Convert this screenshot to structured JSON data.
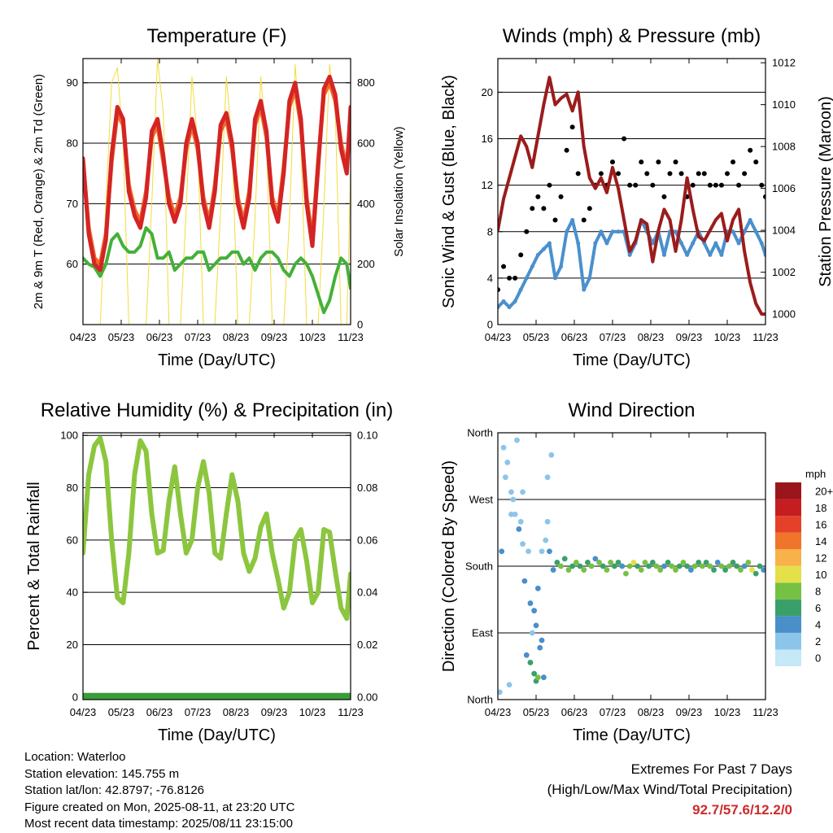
{
  "footer": {
    "location": "Location: Waterloo",
    "elevation": "Station elevation: 145.755 m",
    "latlon": "Station lat/lon: 42.8797; -76.8126",
    "created": "Figure created on Mon, 2025-08-11, at 23:20 UTC",
    "recent": "Most recent data timestamp: 2025/08/11 23:15:00",
    "extremes_title": "Extremes For Past 7 Days",
    "extremes_desc": "(High/Low/Max Wind/Total Precipitation)",
    "extremes_values": "92.7/57.6/12.2/0"
  },
  "chart_data": [
    {
      "id": "temperature",
      "type": "line",
      "title": "Temperature (F)",
      "xlabel": "Time (Day/UTC)",
      "ylabel_left": "2m & 9m T (Red, Orange) & 2m Td (Green)",
      "ylabel_right": "Solar Insolation (Yellow)",
      "x_ticks": [
        "04/23",
        "05/23",
        "06/23",
        "07/23",
        "08/23",
        "09/23",
        "10/23",
        "11/23"
      ],
      "ylim_left": [
        50,
        94
      ],
      "yticks_left": [
        60,
        70,
        80,
        90
      ],
      "ylim_right": [
        0,
        880
      ],
      "yticks_right": [
        0,
        200,
        400,
        600,
        800
      ],
      "x_days": [
        0,
        0.15,
        0.3,
        0.45,
        0.6,
        0.75,
        0.9,
        1.05,
        1.2,
        1.35,
        1.5,
        1.65,
        1.8,
        1.95,
        2.1,
        2.25,
        2.4,
        2.55,
        2.7,
        2.85,
        3.0,
        3.15,
        3.3,
        3.45,
        3.6,
        3.75,
        3.9,
        4.05,
        4.2,
        4.35,
        4.5,
        4.65,
        4.8,
        4.95,
        5.1,
        5.25,
        5.4,
        5.55,
        5.7,
        5.85,
        6.0,
        6.15,
        6.3,
        6.45,
        6.6,
        6.75,
        6.9,
        7.0
      ],
      "series": [
        {
          "name": "2m T",
          "color": "#d42424",
          "values": [
            77.5,
            65,
            60,
            59,
            64,
            78,
            86,
            84,
            72,
            68,
            66,
            71,
            82,
            84,
            78,
            70,
            67,
            70,
            80,
            84,
            80,
            70,
            66,
            72,
            83,
            85,
            80,
            70,
            66,
            71,
            84,
            87,
            82,
            70,
            67,
            75,
            87,
            90,
            84,
            70,
            63,
            76,
            89,
            91,
            88,
            79,
            75,
            86
          ]
        },
        {
          "name": "9m T",
          "color": "#f06a2a",
          "values": [
            77,
            66,
            61,
            60,
            65,
            77,
            85,
            83,
            73,
            69,
            67,
            72,
            81,
            83,
            77,
            71,
            68,
            71,
            79,
            83,
            79,
            71,
            67,
            73,
            82,
            84,
            79,
            71,
            67,
            72,
            83,
            86,
            81,
            71,
            68,
            76,
            86,
            89,
            83,
            71,
            64,
            77,
            88,
            90,
            87,
            80,
            76,
            85
          ]
        },
        {
          "name": "2m Td",
          "color": "#45b03a",
          "values": [
            61,
            60,
            59.5,
            58,
            60,
            64,
            65,
            63,
            62,
            62,
            63,
            66,
            65,
            61,
            61,
            62,
            59,
            60,
            61,
            61,
            62,
            62,
            59,
            60,
            61,
            61,
            62,
            62,
            60,
            61,
            59,
            61,
            62,
            62,
            61,
            59,
            58,
            60,
            61,
            60,
            58,
            55,
            52,
            54,
            58,
            61,
            60,
            56
          ]
        },
        {
          "name": "Solar Insolation",
          "color": "#f2dc3c",
          "axis": "right",
          "values": [
            0,
            0,
            0,
            0,
            400,
            800,
            850,
            600,
            0,
            0,
            0,
            0,
            400,
            880,
            700,
            0,
            0,
            0,
            380,
            820,
            600,
            0,
            0,
            0,
            380,
            820,
            600,
            0,
            0,
            0,
            350,
            820,
            600,
            0,
            0,
            0,
            350,
            860,
            600,
            0,
            0,
            0,
            380,
            860,
            700,
            0,
            0,
            500
          ]
        }
      ]
    },
    {
      "id": "winds",
      "type": "scatter",
      "title": "Winds (mph) & Pressure (mb)",
      "xlabel": "Time (Day/UTC)",
      "ylabel_left": "Sonic Wind & Gust (Blue, Black)",
      "ylabel_right": "Station Pressure (Maroon)",
      "x_ticks": [
        "04/23",
        "05/23",
        "06/23",
        "07/23",
        "08/23",
        "09/23",
        "10/23",
        "11/23"
      ],
      "ylim_left": [
        0,
        22.9
      ],
      "yticks_left": [
        0,
        4,
        8,
        12,
        16,
        20
      ],
      "ylim_right": [
        999.5,
        1012.2
      ],
      "yticks_right": [
        1000,
        1002,
        1004,
        1006,
        1008,
        1010,
        1012
      ],
      "x_days": [
        0,
        0.15,
        0.3,
        0.45,
        0.6,
        0.75,
        0.9,
        1.05,
        1.2,
        1.35,
        1.5,
        1.65,
        1.8,
        1.95,
        2.1,
        2.25,
        2.4,
        2.55,
        2.7,
        2.85,
        3.0,
        3.15,
        3.3,
        3.45,
        3.6,
        3.75,
        3.9,
        4.05,
        4.2,
        4.35,
        4.5,
        4.65,
        4.8,
        4.95,
        5.1,
        5.25,
        5.4,
        5.55,
        5.7,
        5.85,
        6.0,
        6.15,
        6.3,
        6.45,
        6.6,
        6.75,
        6.9,
        7.0
      ],
      "series": [
        {
          "name": "Sonic Wind",
          "color": "#4a90cc",
          "values": [
            1.5,
            2,
            1.5,
            2,
            3,
            4,
            5,
            6,
            6.5,
            7,
            4,
            5,
            8,
            9,
            7,
            3,
            4,
            7,
            8,
            7,
            8,
            8,
            8,
            6,
            7,
            9,
            8,
            7,
            8,
            6,
            8,
            8,
            7,
            6,
            7,
            8,
            7,
            6,
            7,
            6,
            8,
            8,
            7,
            8,
            9,
            8,
            7,
            6
          ]
        },
        {
          "name": "Gust",
          "color": "#000000",
          "values": [
            3,
            5,
            4,
            4,
            6,
            8,
            10,
            11,
            10,
            12,
            9,
            11,
            15,
            17,
            13,
            9,
            10,
            12,
            13,
            12,
            14,
            13,
            16,
            12,
            12,
            14,
            13,
            12,
            14,
            11,
            13,
            14,
            13,
            11,
            12,
            13,
            13,
            12,
            12,
            12,
            13,
            14,
            12,
            13,
            15,
            14,
            12,
            11
          ]
        },
        {
          "name": "Station Pressure",
          "color": "#9b1c1c",
          "axis": "right",
          "values": [
            1004,
            1005.5,
            1006.5,
            1007.5,
            1008.5,
            1008,
            1007,
            1008.5,
            1010,
            1011.3,
            1010,
            1010.3,
            1010.5,
            1009.7,
            1010.6,
            1008,
            1006.5,
            1006,
            1006.5,
            1005.8,
            1007,
            1006,
            1004.5,
            1003,
            1003.5,
            1004.5,
            1004.3,
            1002.5,
            1004,
            1005,
            1004.5,
            1003,
            1004.5,
            1006.5,
            1005,
            1003.7,
            1003.5,
            1004,
            1004.5,
            1004.8,
            1003.5,
            1004.5,
            1005,
            1003,
            1001.5,
            1000.5,
            1000,
            1000
          ]
        }
      ]
    },
    {
      "id": "humidity",
      "type": "line",
      "title": "Relative Humidity (%) & Precipitation (in)",
      "xlabel": "Time (Day/UTC)",
      "ylabel_left": "Percent & Total Rainfall",
      "x_ticks": [
        "04/23",
        "05/23",
        "06/23",
        "07/23",
        "08/23",
        "09/23",
        "10/23",
        "11/23"
      ],
      "ylim_left": [
        -1,
        101
      ],
      "yticks_left": [
        0,
        20,
        40,
        60,
        80,
        100
      ],
      "ylim_right": [
        -0.001,
        0.101
      ],
      "yticks_right": [
        "0.00",
        "0.02",
        "0.04",
        "0.06",
        "0.08",
        "0.10"
      ],
      "x_days": [
        0,
        0.15,
        0.3,
        0.45,
        0.6,
        0.75,
        0.9,
        1.05,
        1.2,
        1.35,
        1.5,
        1.65,
        1.8,
        1.95,
        2.1,
        2.25,
        2.4,
        2.55,
        2.7,
        2.85,
        3.0,
        3.15,
        3.3,
        3.45,
        3.6,
        3.75,
        3.9,
        4.05,
        4.2,
        4.35,
        4.5,
        4.65,
        4.8,
        4.95,
        5.1,
        5.25,
        5.4,
        5.55,
        5.7,
        5.85,
        6.0,
        6.15,
        6.3,
        6.45,
        6.6,
        6.75,
        6.9,
        7.0
      ],
      "series": [
        {
          "name": "Relative Humidity",
          "color": "#8cc63f",
          "values": [
            55,
            85,
            96,
            99,
            90,
            60,
            38,
            36,
            55,
            85,
            98,
            94,
            70,
            55,
            56,
            75,
            88,
            70,
            55,
            60,
            80,
            90,
            78,
            55,
            53,
            70,
            85,
            75,
            55,
            48,
            53,
            65,
            70,
            55,
            45,
            34,
            40,
            60,
            64,
            52,
            36,
            40,
            64,
            63,
            48,
            34,
            30,
            47
          ]
        },
        {
          "name": "Total Rainfall",
          "color": "#3a9c3a",
          "axis": "right",
          "values": [
            0,
            0,
            0,
            0,
            0,
            0,
            0,
            0,
            0,
            0,
            0,
            0,
            0,
            0,
            0,
            0,
            0,
            0,
            0,
            0,
            0,
            0,
            0,
            0,
            0,
            0,
            0,
            0,
            0,
            0,
            0,
            0,
            0,
            0,
            0,
            0,
            0,
            0,
            0,
            0,
            0,
            0,
            0,
            0,
            0,
            0,
            0,
            0
          ]
        }
      ]
    },
    {
      "id": "direction",
      "type": "scatter",
      "title": "Wind Direction",
      "xlabel": "Time (Day/UTC)",
      "ylabel_left": "Direction (Colored By Speed)",
      "x_ticks": [
        "04/23",
        "05/23",
        "06/23",
        "07/23",
        "08/23",
        "09/23",
        "10/23",
        "11/23"
      ],
      "ylim_left": [
        0,
        360
      ],
      "yticks_left": [
        "North",
        "East",
        "South",
        "West",
        "North"
      ],
      "legend_title": "mph",
      "legend_labels": [
        "0",
        "2",
        "4",
        "6",
        "8",
        "10",
        "12",
        "14",
        "16",
        "18",
        "20+"
      ],
      "legend_colors": [
        "#c6e8f7",
        "#8cc5ea",
        "#4a8fca",
        "#3aa06a",
        "#76c043",
        "#e4e049",
        "#f7b24a",
        "#f0742a",
        "#e5412a",
        "#c41e23",
        "#9b161b"
      ],
      "x_days": [
        0.05,
        0.15,
        0.25,
        0.35,
        0.45,
        0.55,
        0.65,
        0.75,
        0.85,
        0.95,
        1.05,
        1.15,
        1.25,
        1.35,
        1.45,
        1.55,
        1.65,
        1.75,
        1.85,
        1.95,
        2.05,
        2.15,
        2.25,
        2.35,
        2.45,
        2.55,
        2.65,
        2.75,
        2.85,
        2.95,
        3.05,
        3.15,
        3.25,
        3.35,
        3.45,
        3.55,
        3.65,
        3.75,
        3.85,
        3.95,
        4.05,
        4.15,
        4.25,
        4.35,
        4.45,
        4.55,
        4.65,
        4.75,
        4.85,
        4.95,
        5.05,
        5.15,
        5.25,
        5.35,
        5.45,
        5.55,
        5.65,
        5.75,
        5.85,
        5.95,
        6.05,
        6.15,
        6.25,
        6.35,
        6.45,
        6.55,
        6.65,
        6.75,
        6.85,
        6.95,
        0.2,
        0.4,
        0.6,
        0.8,
        1.0,
        1.2,
        1.4,
        0.3,
        0.5,
        0.7,
        0.9,
        1.1,
        1.3,
        0.1,
        0.35,
        0.65,
        0.85,
        1.15,
        1.3,
        0.95,
        1.0,
        1.05
      ],
      "series": [
        {
          "name": "Direction",
          "values": [
            10,
            340,
            320,
            280,
            250,
            230,
            210,
            60,
            50,
            120,
            150,
            200,
            215,
            200,
            175,
            185,
            180,
            190,
            175,
            180,
            185,
            180,
            175,
            185,
            180,
            190,
            185,
            180,
            175,
            185,
            180,
            185,
            180,
            170,
            180,
            185,
            180,
            175,
            185,
            180,
            185,
            180,
            175,
            180,
            185,
            180,
            175,
            180,
            185,
            180,
            175,
            180,
            185,
            180,
            185,
            180,
            175,
            185,
            180,
            175,
            180,
            185,
            180,
            175,
            180,
            185,
            175,
            170,
            180,
            175,
            300,
            270,
            240,
            200,
            100,
            30,
            330,
            20,
            350,
            160,
            90,
            70,
            300,
            200,
            250,
            280,
            130,
            80,
            240,
            35,
            25,
            30
          ]
        },
        {
          "name": "Speed",
          "values": [
            2,
            1,
            1,
            1,
            2,
            3,
            1,
            4,
            5,
            3,
            4,
            1,
            2,
            3,
            4,
            6,
            8,
            6,
            7,
            5,
            7,
            6,
            7,
            5,
            8,
            4,
            7,
            6,
            8,
            7,
            6,
            5,
            4,
            7,
            8,
            9,
            6,
            7,
            8,
            5,
            6,
            7,
            8,
            4,
            6,
            7,
            8,
            6,
            7,
            5,
            4,
            7,
            6,
            8,
            5,
            7,
            6,
            4,
            8,
            6,
            7,
            5,
            6,
            8,
            4,
            7,
            9,
            6,
            5,
            4,
            1,
            1,
            1,
            2,
            3,
            4,
            1,
            2,
            1,
            3,
            2,
            4,
            1,
            3,
            1,
            2,
            3,
            4,
            2,
            6,
            5,
            7
          ]
        }
      ]
    }
  ]
}
